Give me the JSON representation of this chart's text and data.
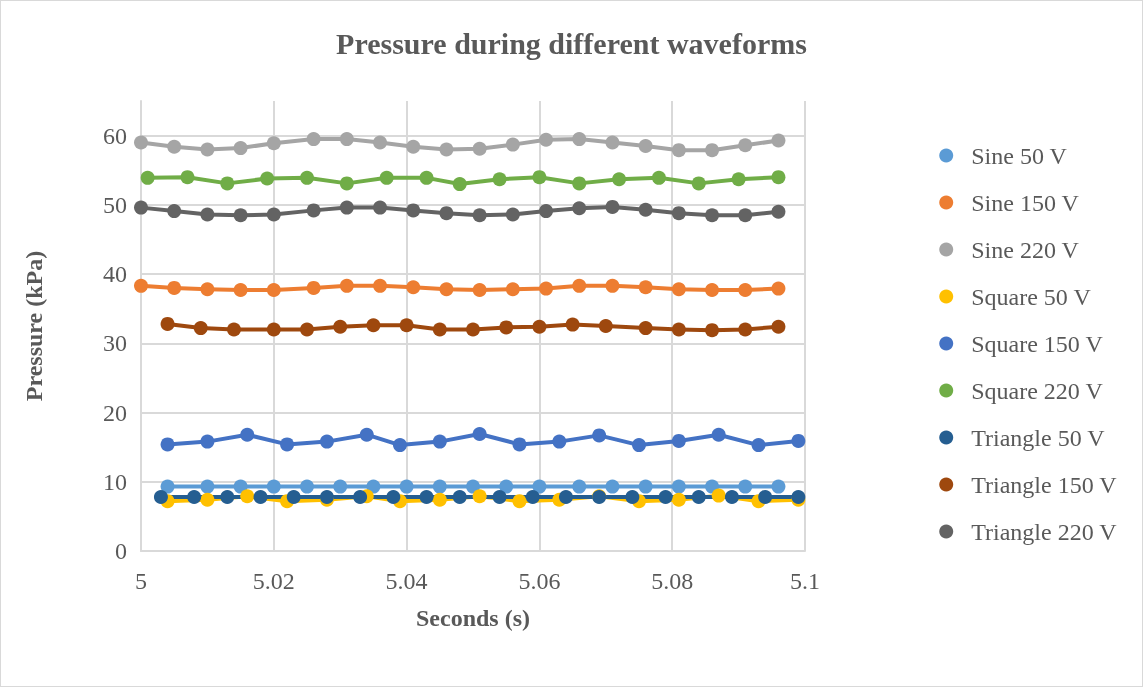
{
  "chart_data": {
    "type": "line",
    "title": "Pressure during different waveforms",
    "xlabel": "Seconds (s)",
    "ylabel": "Pressure (kPa)",
    "xlim": [
      5,
      5.1
    ],
    "xticks": [
      5,
      5.02,
      5.04,
      5.06,
      5.08,
      5.1
    ],
    "ylim": [
      0,
      65
    ],
    "yticks": [
      0,
      10,
      20,
      30,
      40,
      50,
      60
    ],
    "grid": true,
    "legend": "right",
    "marker": "circle",
    "line_style": "solid",
    "series": [
      {
        "name": "Sine 50 V",
        "color": "#5b9bd5",
        "x": [
          5.004,
          5.01,
          5.015,
          5.02,
          5.025,
          5.03,
          5.035,
          5.04,
          5.045,
          5.05,
          5.055,
          5.06,
          5.066,
          5.071,
          5.076,
          5.081,
          5.086,
          5.091,
          5.096
        ],
        "values": [
          9.3,
          9.3,
          9.3,
          9.3,
          9.3,
          9.3,
          9.3,
          9.3,
          9.3,
          9.3,
          9.3,
          9.3,
          9.3,
          9.3,
          9.3,
          9.3,
          9.3,
          9.3,
          9.3
        ]
      },
      {
        "name": "Sine 150 V",
        "color": "#ed7d31",
        "x": [
          5.0,
          5.005,
          5.01,
          5.015,
          5.02,
          5.026,
          5.031,
          5.036,
          5.041,
          5.046,
          5.051,
          5.056,
          5.061,
          5.066,
          5.071,
          5.076,
          5.081,
          5.086,
          5.091,
          5.096
        ],
        "values": [
          38.3,
          38.0,
          37.8,
          37.7,
          37.7,
          38.0,
          38.3,
          38.3,
          38.1,
          37.8,
          37.7,
          37.8,
          37.9,
          38.3,
          38.3,
          38.1,
          37.8,
          37.7,
          37.7,
          37.9
        ]
      },
      {
        "name": "Sine 220 V",
        "color": "#a5a5a5",
        "x": [
          5.0,
          5.005,
          5.01,
          5.015,
          5.02,
          5.026,
          5.031,
          5.036,
          5.041,
          5.046,
          5.051,
          5.056,
          5.061,
          5.066,
          5.071,
          5.076,
          5.081,
          5.086,
          5.091,
          5.096
        ],
        "values": [
          59.0,
          58.4,
          58.0,
          58.2,
          58.9,
          59.5,
          59.5,
          59.0,
          58.4,
          58.0,
          58.1,
          58.7,
          59.4,
          59.5,
          59.0,
          58.5,
          57.9,
          57.9,
          58.6,
          59.3
        ]
      },
      {
        "name": "Square 50 V",
        "color": "#ffc000",
        "x": [
          5.004,
          5.01,
          5.016,
          5.022,
          5.028,
          5.034,
          5.039,
          5.045,
          5.051,
          5.057,
          5.063,
          5.069,
          5.075,
          5.081,
          5.087,
          5.093,
          5.099
        ],
        "values": [
          7.2,
          7.4,
          7.9,
          7.2,
          7.4,
          7.9,
          7.2,
          7.4,
          7.9,
          7.2,
          7.4,
          7.9,
          7.2,
          7.4,
          8.0,
          7.2,
          7.4
        ]
      },
      {
        "name": "Square 150 V",
        "color": "#4472c4",
        "x": [
          5.004,
          5.01,
          5.016,
          5.022,
          5.028,
          5.034,
          5.039,
          5.045,
          5.051,
          5.057,
          5.063,
          5.069,
          5.075,
          5.081,
          5.087,
          5.093,
          5.099
        ],
        "values": [
          15.4,
          15.8,
          16.8,
          15.4,
          15.8,
          16.8,
          15.3,
          15.8,
          16.9,
          15.4,
          15.8,
          16.7,
          15.3,
          15.9,
          16.8,
          15.3,
          15.9
        ]
      },
      {
        "name": "Square 220 V",
        "color": "#70ad47",
        "x": [
          5.001,
          5.007,
          5.013,
          5.019,
          5.025,
          5.031,
          5.037,
          5.043,
          5.048,
          5.054,
          5.06,
          5.066,
          5.072,
          5.078,
          5.084,
          5.09,
          5.096
        ],
        "values": [
          53.9,
          54.0,
          53.1,
          53.8,
          53.9,
          53.1,
          53.9,
          53.9,
          53.0,
          53.7,
          54.0,
          53.1,
          53.7,
          53.9,
          53.1,
          53.7,
          54.0
        ]
      },
      {
        "name": "Triangle 50 V",
        "color": "#255e91",
        "x": [
          5.003,
          5.008,
          5.013,
          5.018,
          5.023,
          5.028,
          5.033,
          5.038,
          5.043,
          5.048,
          5.054,
          5.059,
          5.064,
          5.069,
          5.074,
          5.079,
          5.084,
          5.089,
          5.094,
          5.099
        ],
        "values": [
          7.8,
          7.8,
          7.8,
          7.8,
          7.8,
          7.8,
          7.8,
          7.8,
          7.8,
          7.8,
          7.8,
          7.8,
          7.8,
          7.8,
          7.8,
          7.8,
          7.8,
          7.8,
          7.8,
          7.8
        ]
      },
      {
        "name": "Triangle 150 V",
        "color": "#9e480e",
        "x": [
          5.004,
          5.009,
          5.014,
          5.02,
          5.025,
          5.03,
          5.035,
          5.04,
          5.045,
          5.05,
          5.055,
          5.06,
          5.065,
          5.07,
          5.076,
          5.081,
          5.086,
          5.091,
          5.096
        ],
        "values": [
          32.8,
          32.2,
          32.0,
          32.0,
          32.0,
          32.4,
          32.6,
          32.6,
          32.0,
          32.0,
          32.3,
          32.4,
          32.7,
          32.5,
          32.2,
          32.0,
          31.9,
          32.0,
          32.4
        ]
      },
      {
        "name": "Triangle 220 V",
        "color": "#636363",
        "x": [
          5.0,
          5.005,
          5.01,
          5.015,
          5.02,
          5.026,
          5.031,
          5.036,
          5.041,
          5.046,
          5.051,
          5.056,
          5.061,
          5.066,
          5.071,
          5.076,
          5.081,
          5.086,
          5.091,
          5.096
        ],
        "values": [
          49.6,
          49.1,
          48.6,
          48.5,
          48.6,
          49.2,
          49.6,
          49.6,
          49.2,
          48.8,
          48.5,
          48.6,
          49.1,
          49.5,
          49.7,
          49.3,
          48.8,
          48.5,
          48.5,
          49.0
        ]
      }
    ]
  }
}
